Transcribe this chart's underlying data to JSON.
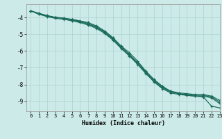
{
  "xlabel": "Humidex (Indice chaleur)",
  "background_color": "#cceae7",
  "grid_color": "#aad4d0",
  "line_color": "#1a6b5a",
  "xlim": [
    -0.5,
    23
  ],
  "ylim": [
    -9.6,
    -3.2
  ],
  "yticks": [
    -4,
    -5,
    -6,
    -7,
    -8,
    -9
  ],
  "xticks": [
    0,
    1,
    2,
    3,
    4,
    5,
    6,
    7,
    8,
    9,
    10,
    11,
    12,
    13,
    14,
    15,
    16,
    17,
    18,
    19,
    20,
    21,
    22,
    23
  ],
  "series": [
    [
      -3.6,
      -3.8,
      -3.9,
      -4.0,
      -4.05,
      -4.1,
      -4.2,
      -4.3,
      -4.5,
      -4.8,
      -5.2,
      -5.7,
      -6.1,
      -6.6,
      -7.2,
      -7.7,
      -8.1,
      -8.4,
      -8.55,
      -8.65,
      -8.7,
      -8.75,
      -9.3,
      -9.4
    ],
    [
      -3.6,
      -3.8,
      -3.95,
      -4.05,
      -4.1,
      -4.2,
      -4.3,
      -4.45,
      -4.65,
      -4.95,
      -5.35,
      -5.85,
      -6.3,
      -6.8,
      -7.35,
      -7.85,
      -8.25,
      -8.5,
      -8.6,
      -8.65,
      -8.7,
      -8.7,
      -8.8,
      -9.15
    ],
    [
      -3.6,
      -3.75,
      -3.9,
      -4.0,
      -4.05,
      -4.15,
      -4.25,
      -4.4,
      -4.6,
      -4.9,
      -5.3,
      -5.8,
      -6.25,
      -6.75,
      -7.3,
      -7.8,
      -8.2,
      -8.45,
      -8.55,
      -8.6,
      -8.65,
      -8.65,
      -8.75,
      -9.05
    ],
    [
      -3.6,
      -3.75,
      -3.88,
      -3.98,
      -4.03,
      -4.12,
      -4.22,
      -4.35,
      -4.55,
      -4.85,
      -5.25,
      -5.75,
      -6.2,
      -6.7,
      -7.25,
      -7.75,
      -8.15,
      -8.4,
      -8.5,
      -8.55,
      -8.6,
      -8.6,
      -8.7,
      -8.95
    ]
  ]
}
